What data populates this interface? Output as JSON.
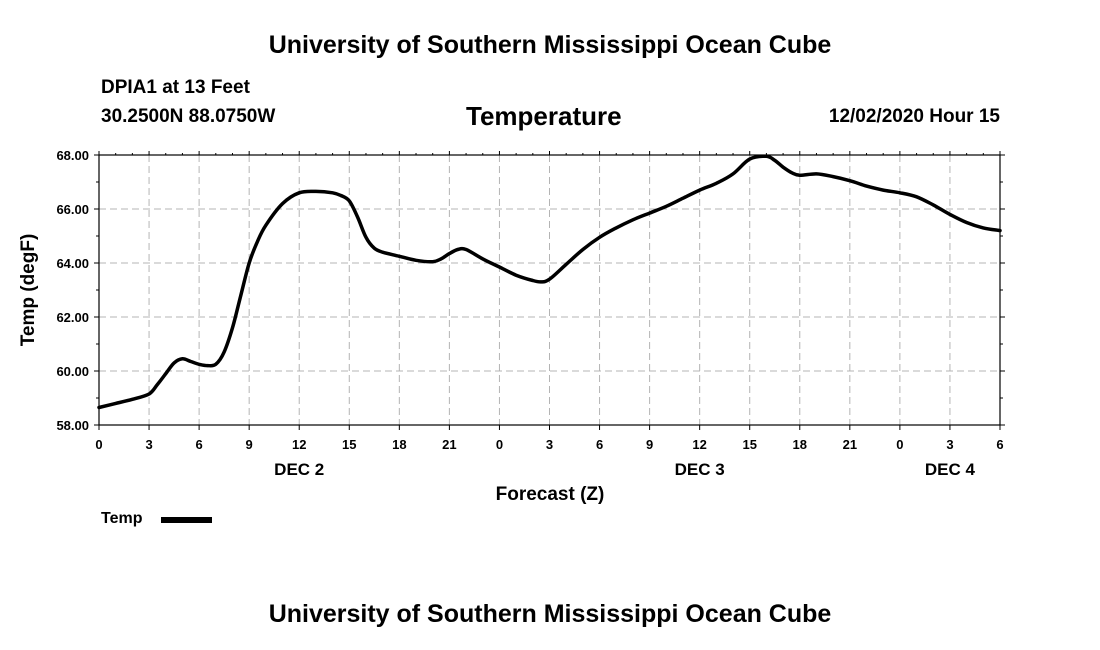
{
  "header": {
    "main_title": "University of Southern Mississippi Ocean Cube",
    "station": "DPIA1 at 13 Feet",
    "coords": "30.2500N 88.0750W",
    "chart_title": "Temperature",
    "datetime": "12/02/2020 Hour 15"
  },
  "footer": {
    "title": "University of Southern Mississippi Ocean Cube"
  },
  "legend": {
    "label": "Temp",
    "color": "#000000"
  },
  "chart_data": {
    "type": "line",
    "title": "Temperature",
    "xlabel": "Forecast (Z)",
    "ylabel": "Temp (degF)",
    "xlim": [
      0,
      54
    ],
    "ylim": [
      58,
      68
    ],
    "grid": true,
    "legend_position": "bottom-left",
    "y_ticks": [
      58,
      60,
      62,
      64,
      66,
      68
    ],
    "y_tick_labels": [
      "58.00",
      "60.00",
      "62.00",
      "64.00",
      "66.00",
      "68.00"
    ],
    "x_ticks": [
      0,
      3,
      6,
      9,
      12,
      15,
      18,
      21,
      24,
      27,
      30,
      33,
      36,
      39,
      42,
      45,
      48,
      51,
      54
    ],
    "x_tick_labels": [
      "0",
      "3",
      "6",
      "9",
      "12",
      "15",
      "18",
      "21",
      "0",
      "3",
      "6",
      "9",
      "12",
      "15",
      "18",
      "21",
      "0",
      "3",
      "6"
    ],
    "date_labels": [
      {
        "x": 12,
        "label": "DEC 2"
      },
      {
        "x": 36,
        "label": "DEC 3"
      },
      {
        "x": 51,
        "label": "DEC 4"
      }
    ],
    "series": [
      {
        "name": "Temp",
        "color": "#000000",
        "x": [
          0,
          1,
          2,
          3,
          3.5,
          4,
          4.5,
          5,
          5.5,
          6,
          6.5,
          7,
          7.5,
          8,
          8.5,
          9,
          9.5,
          10,
          11,
          12,
          13,
          14,
          14.5,
          15,
          15.5,
          16,
          16.5,
          17,
          18,
          19,
          20,
          20.5,
          21,
          21.5,
          22,
          23,
          24,
          25,
          26,
          26.5,
          27,
          28,
          29,
          30,
          31,
          32,
          33,
          34,
          35,
          36,
          37,
          38,
          39,
          40,
          40.5,
          41,
          41.5,
          42,
          43,
          44,
          45,
          46,
          47,
          48,
          49,
          50,
          51,
          52,
          53,
          54
        ],
        "values": [
          58.65,
          58.8,
          58.95,
          59.15,
          59.5,
          59.9,
          60.3,
          60.45,
          60.35,
          60.25,
          60.2,
          60.25,
          60.7,
          61.6,
          62.8,
          64.0,
          64.8,
          65.4,
          66.2,
          66.6,
          66.65,
          66.6,
          66.5,
          66.3,
          65.7,
          64.95,
          64.55,
          64.4,
          64.25,
          64.1,
          64.05,
          64.15,
          64.35,
          64.5,
          64.5,
          64.15,
          63.85,
          63.55,
          63.35,
          63.3,
          63.4,
          63.95,
          64.5,
          64.95,
          65.3,
          65.6,
          65.85,
          66.1,
          66.4,
          66.7,
          66.95,
          67.3,
          67.85,
          67.95,
          67.8,
          67.55,
          67.35,
          67.25,
          67.3,
          67.2,
          67.05,
          66.85,
          66.7,
          66.6,
          66.45,
          66.15,
          65.8,
          65.5,
          65.3,
          65.2
        ]
      }
    ]
  }
}
